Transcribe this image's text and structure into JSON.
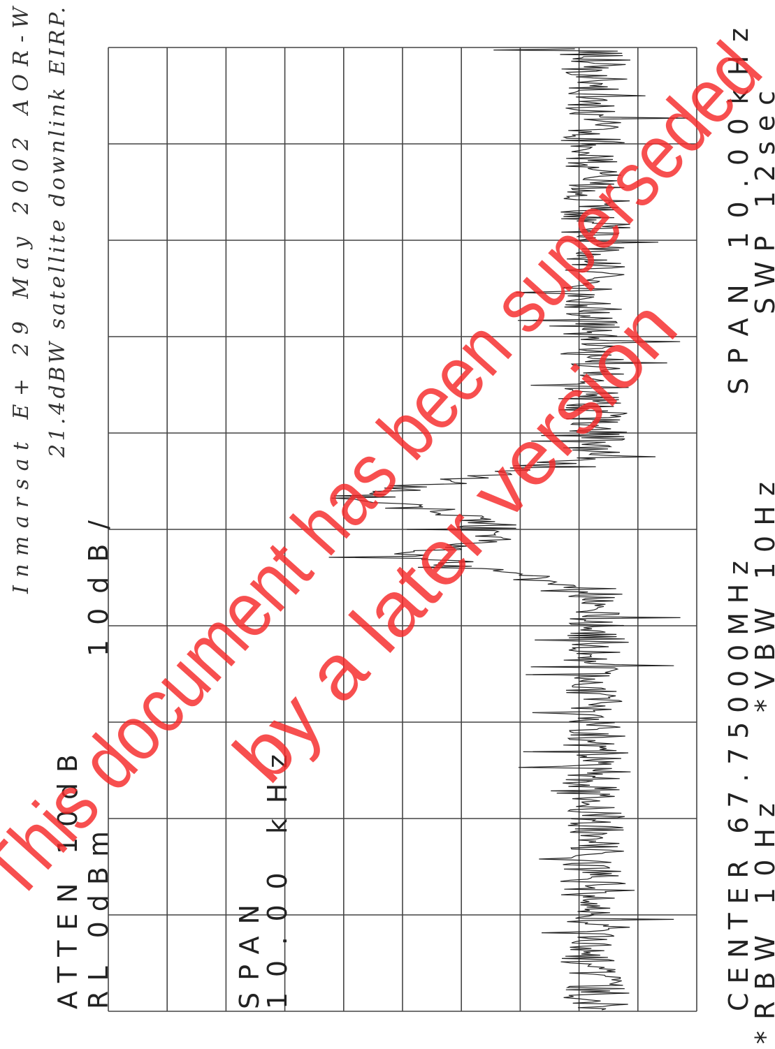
{
  "header": {
    "line1": "Inmarsat E+   29 May 2002   AOR-W",
    "line2": "21.4dBW satellite downlink EIRP."
  },
  "settings": {
    "atten": "ATTEN 10dB",
    "rl": "RL 0dBm",
    "scale": "10dB/",
    "span_label": "SPAN",
    "span_value": "10.00 kHz"
  },
  "footer": {
    "center": "CENTER 67.75000MHz",
    "span": "SPAN 10.00kHz",
    "rbw": "*RBW 10Hz",
    "vbw": "*VBW 10Hz",
    "swp": "SWP 12sec"
  },
  "watermark": {
    "line1": "This document has been superseded",
    "line2": "by a later version"
  }
}
